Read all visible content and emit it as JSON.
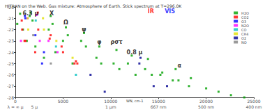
{
  "chart_data": {
    "type": "scatter",
    "title": "HITRAN on the Web. Gas mixture: Atmosphere of Earth. Stick spectrum at T=296.0K",
    "x_label": "WN, cm-1",
    "xlim": [
      0,
      25000
    ],
    "xticks": [
      0,
      5000,
      10000,
      15000,
      20000,
      25000
    ],
    "wavelength_ticks": [
      {
        "value": 0,
        "label": "λ = ∞ μ"
      },
      {
        "value": 2000,
        "label": "5 μ"
      },
      {
        "value": 10000,
        "label": "1 μm"
      },
      {
        "value": 15000,
        "label": "667 nm"
      },
      {
        "value": 20000,
        "label": "500 nm"
      },
      {
        "value": 25000,
        "label": "400 nm"
      }
    ],
    "ylim": [
      -28,
      -20
    ],
    "yticks": [
      -28,
      -27,
      -26,
      -25,
      -24,
      -23,
      -22,
      -21,
      -20
    ],
    "grid": false,
    "legend": "top-right",
    "marker": "square",
    "series": [
      {
        "name": "H2O",
        "color": "#00a000",
        "x": [
          200,
          500,
          800,
          1200,
          1500,
          1600,
          1800,
          2100,
          3000,
          3500,
          3700,
          3900,
          4200,
          5000,
          5300,
          5500,
          6000,
          6900,
          7200,
          7400,
          8500,
          8800,
          9000,
          10300,
          10600,
          10900,
          11800,
          12200,
          12600,
          13600,
          13900,
          14300,
          15200,
          15400,
          16500,
          16800,
          17100,
          18200,
          18400,
          20000,
          21300,
          22600,
          24000
        ],
        "values": [
          -21.5,
          -20.6,
          -22,
          -23,
          -20.8,
          -20.5,
          -21.2,
          -23.5,
          -24.5,
          -22,
          -20.8,
          -21.5,
          -24,
          -23,
          -21.8,
          -22.5,
          -25,
          -23,
          -22.3,
          -23.5,
          -24.5,
          -23.5,
          -25,
          -25,
          -23.8,
          -25.5,
          -25,
          -24.3,
          -26,
          -25.5,
          -24.6,
          -26,
          -26,
          -25.8,
          -26.5,
          -25.5,
          -26.5,
          -27,
          -26.3,
          -27.2,
          -27.5,
          -27.8,
          -28
        ]
      },
      {
        "name": "CO2",
        "color": "#ff0000",
        "x": [
          670,
          720,
          960,
          1060,
          2080,
          2350,
          2400,
          3600,
          3700,
          4850,
          5000,
          6200,
          6350,
          6500
        ],
        "values": [
          -21.2,
          -22,
          -23,
          -23,
          -24,
          -20.5,
          -22,
          -22.8,
          -22.5,
          -23.5,
          -24,
          -25,
          -24.8,
          -25
        ]
      },
      {
        "name": "O3",
        "color": "#0000ff",
        "x": [
          1000,
          1050,
          2100,
          2800,
          3000
        ],
        "values": [
          -20.8,
          -21,
          -22.5,
          -25,
          -24
        ]
      },
      {
        "name": "N2O",
        "color": "#ff00ff",
        "x": [
          590,
          1280,
          2220,
          2560,
          3480,
          4420
        ],
        "values": [
          -23,
          -21,
          -20.7,
          -23,
          -23,
          -24
        ]
      },
      {
        "name": "CO",
        "color": "#00c0c0",
        "x": [
          2140,
          4260,
          6350
        ],
        "values": [
          -21.2,
          -23.5,
          -26
        ]
      },
      {
        "name": "CH4",
        "color": "#e0e000",
        "x": [
          1300,
          1350,
          2900,
          3000,
          4300,
          6000
        ],
        "values": [
          -21,
          -22,
          -21,
          -22,
          -23,
          -24.5
        ]
      },
      {
        "name": "O2",
        "color": "#000090",
        "x": [
          7880,
          9370,
          13000,
          13120,
          14500,
          15900
        ],
        "values": [
          -26,
          -27.5,
          -25,
          -24.5,
          -27,
          -27
        ]
      },
      {
        "name": "NO",
        "color": "#808080",
        "x": [
          1875,
          3720
        ],
        "values": [
          -22.5,
          -25
        ]
      }
    ],
    "annotations": [
      {
        "text": "6.3 μ",
        "x": 1600,
        "y": -20.6,
        "color": "#000000"
      },
      {
        "text": "X",
        "x": 3800,
        "y": -20.6,
        "color": "#000000"
      },
      {
        "text": "Ω",
        "x": 5300,
        "y": -21.4,
        "color": "#000000"
      },
      {
        "text": "ψ",
        "x": 7200,
        "y": -22.0,
        "color": "#000000"
      },
      {
        "text": "φ",
        "x": 8800,
        "y": -23.1,
        "color": "#000000"
      },
      {
        "text": "ρστ",
        "x": 10600,
        "y": -23.1,
        "color": "#000000"
      },
      {
        "text": "0.8 μ",
        "x": 12500,
        "y": -24.0,
        "color": "#000000"
      },
      {
        "text": "α",
        "x": 17200,
        "y": -25.2,
        "color": "#000000"
      },
      {
        "text": "IR",
        "x": 14200,
        "y": -20.4,
        "color": "#ff0000"
      },
      {
        "text": "VIS",
        "x": 16200,
        "y": -20.4,
        "color": "#0000ff"
      }
    ]
  }
}
